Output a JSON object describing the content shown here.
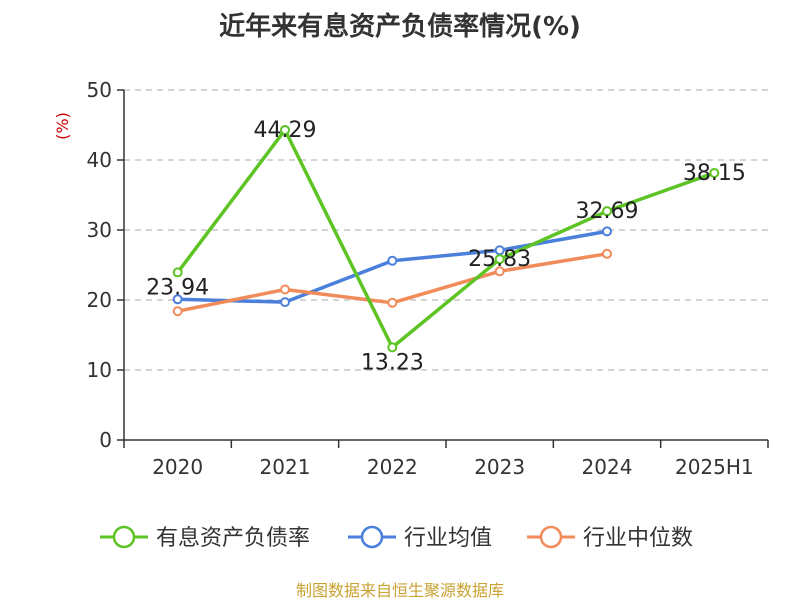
{
  "chart_data": {
    "type": "line",
    "title": "近年来有息资产负债率情况(%)",
    "ylabel": "(%)",
    "ylim": [
      0,
      50
    ],
    "yticks": [
      0,
      10,
      20,
      30,
      40,
      50
    ],
    "grid": true,
    "legend_position": "bottom",
    "categories": [
      "2020",
      "2021",
      "2022",
      "2023",
      "2024",
      "2025H1"
    ],
    "series": [
      {
        "name": "有息资产负债率",
        "color": "#5dc423",
        "values": [
          23.94,
          44.29,
          13.23,
          25.83,
          32.69,
          38.15
        ],
        "labels": [
          "23.94",
          "44.29",
          "13.23",
          "25.83",
          "32.69",
          "38.15"
        ]
      },
      {
        "name": "行业均值",
        "color": "#4a7fdc",
        "values": [
          20.1,
          19.7,
          25.6,
          27.1,
          29.8,
          null
        ]
      },
      {
        "name": "行业中位数",
        "color": "#f28b5a",
        "values": [
          18.4,
          21.5,
          19.6,
          24.1,
          26.6,
          null
        ]
      }
    ],
    "ylabel_color": "#cc0000",
    "source": "制图数据来自恒生聚源数据库",
    "source_color": "#c9a233"
  }
}
